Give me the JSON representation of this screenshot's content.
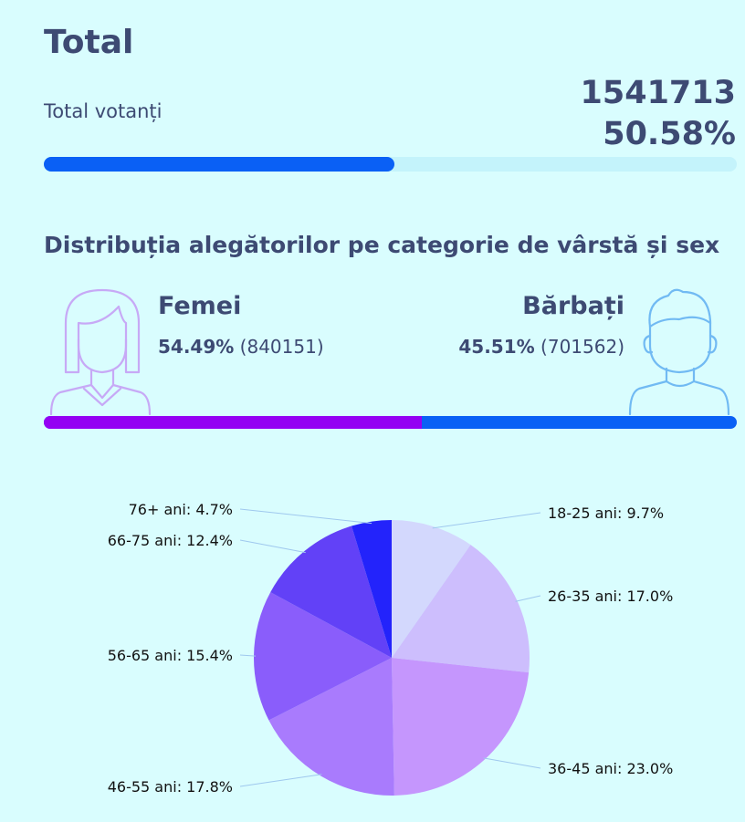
{
  "header": {
    "title": "Total",
    "voters_label": "Total votanți",
    "voters_count": "1541713",
    "voters_percent": "50.58%",
    "progress_fraction": 0.5058
  },
  "gender": {
    "subtitle": "Distribuția alegătorilor pe categorie de vârstă și sex",
    "female": {
      "label": "Femei",
      "percent": "54.49%",
      "count": "(840151)",
      "fraction": 0.5449,
      "color": "#9400f3"
    },
    "male": {
      "label": "Bărbați",
      "percent": "45.51%",
      "count": "(701562)",
      "fraction": 0.4551,
      "color": "#0a60f5"
    },
    "icons": {
      "female": "woman-avatar-icon",
      "male": "man-avatar-icon"
    }
  },
  "chart_data": {
    "type": "pie",
    "start": "12 o'clock, clockwise",
    "slices": [
      {
        "label": "18-25 ani: 9.7%",
        "value": 9.7,
        "color": "#d3d8fd"
      },
      {
        "label": "26-35 ani: 17.0%",
        "value": 17.0,
        "color": "#cdbefd"
      },
      {
        "label": "36-45 ani: 23.0%",
        "value": 23.0,
        "color": "#c596fd"
      },
      {
        "label": "46-55 ani: 17.8%",
        "value": 17.8,
        "color": "#a97bfd"
      },
      {
        "label": "56-65 ani: 15.4%",
        "value": 15.4,
        "color": "#8a5dfb"
      },
      {
        "label": "66-75 ani: 12.4%",
        "value": 12.4,
        "color": "#6241f7"
      },
      {
        "label": "76+ ani: 4.7%",
        "value": 4.7,
        "color": "#2323fb"
      }
    ]
  }
}
